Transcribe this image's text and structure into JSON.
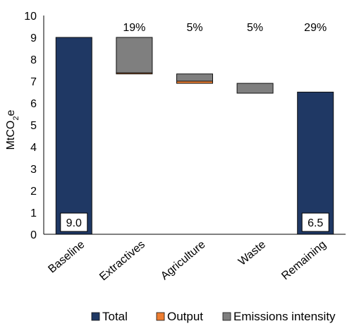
{
  "chart_data": {
    "type": "bar",
    "subtype": "waterfall",
    "ylabel": {
      "base": "MtCO",
      "sub": "2",
      "tail": "e"
    },
    "ylim": [
      0,
      10
    ],
    "yticks": [
      0,
      1,
      2,
      3,
      4,
      5,
      6,
      7,
      8,
      9,
      10
    ],
    "categories": [
      "Baseline",
      "Extractives",
      "Agriculture",
      "Waste",
      "Remaining"
    ],
    "percent_labels": [
      "",
      "19%",
      "5%",
      "5%",
      "29%"
    ],
    "totals": [
      {
        "category": "Baseline",
        "value": 9.0,
        "label": "9.0"
      },
      {
        "category": "Remaining",
        "value": 6.5,
        "label": "6.5"
      }
    ],
    "segments": [
      {
        "category": "Extractives",
        "series": "Output",
        "from": 7.38,
        "to": 7.33
      },
      {
        "category": "Extractives",
        "series": "Emissions intensity",
        "from": 9.0,
        "to": 7.38
      },
      {
        "category": "Agriculture",
        "series": "Output",
        "from": 7.0,
        "to": 6.9
      },
      {
        "category": "Agriculture",
        "series": "Emissions intensity",
        "from": 7.33,
        "to": 7.0
      },
      {
        "category": "Waste",
        "series": "Emissions intensity",
        "from": 6.9,
        "to": 6.45
      }
    ],
    "series": [
      {
        "name": "Total",
        "color": "#1F3864"
      },
      {
        "name": "Output",
        "color": "#ED7D31"
      },
      {
        "name": "Emissions intensity",
        "color": "#7F7F7F"
      }
    ],
    "grid": false,
    "legend_position": "bottom"
  }
}
